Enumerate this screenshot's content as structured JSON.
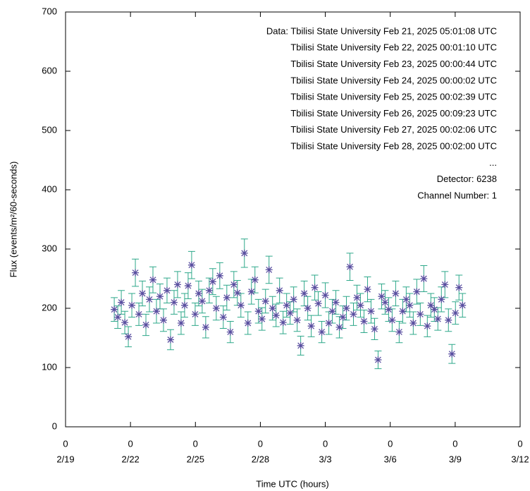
{
  "chart_data": {
    "type": "scatter",
    "xlabel": "Time UTC (hours)",
    "ylabel": "Flux (events/m²/60-seconds)",
    "annotations": [
      "Data: Tbilisi State University Feb 21, 2025 05:01:08 UTC",
      "Tbilisi State University Feb 22, 2025 00:01:10 UTC",
      "Tbilisi State University Feb 23, 2025 00:00:44 UTC",
      "Tbilisi State University Feb 24, 2025 00:00:02 UTC",
      "Tbilisi State University Feb 25, 2025 00:02:39 UTC",
      "Tbilisi State University Feb 26, 2025 00:09:23 UTC",
      "Tbilisi State University Feb 27, 2025 00:02:06 UTC",
      "Tbilisi State University Feb 28, 2025 00:02:00 UTC",
      "...",
      "Detector: 6238",
      "Channel Number: 1"
    ],
    "xlim": [
      0,
      504
    ],
    "xticks": [
      {
        "value": 0,
        "label": "0",
        "sublabel": "2/19"
      },
      {
        "value": 72,
        "label": "0",
        "sublabel": "2/22"
      },
      {
        "value": 144,
        "label": "0",
        "sublabel": "2/25"
      },
      {
        "value": 216,
        "label": "0",
        "sublabel": "2/28"
      },
      {
        "value": 288,
        "label": "0",
        "sublabel": "3/3"
      },
      {
        "value": 360,
        "label": "0",
        "sublabel": "3/6"
      },
      {
        "value": 432,
        "label": "0",
        "sublabel": "3/9"
      },
      {
        "value": 504,
        "label": "0",
        "sublabel": "3/12"
      }
    ],
    "ylim": [
      0,
      700
    ],
    "yticks": [
      0,
      100,
      200,
      300,
      400,
      500,
      600,
      700
    ],
    "marker_color": "#5a4fa0",
    "errorbar_color": "#2ea88a",
    "x": [
      54,
      57.9,
      61.8,
      65.7,
      69.6,
      73.5,
      77.4,
      81.3,
      85.2,
      89.1,
      93,
      96.9,
      100.8,
      104.7,
      108.6,
      112.5,
      116.4,
      120.3,
      124.2,
      128.1,
      132,
      135.9,
      139.8,
      143.7,
      147.6,
      151.5,
      155.4,
      159.3,
      163.2,
      167.1,
      171,
      174.9,
      178.8,
      182.7,
      186.6,
      190.5,
      194.4,
      198.3,
      202.2,
      206.1,
      210,
      213.9,
      217.8,
      221.7,
      225.6,
      229.5,
      233.4,
      237.3,
      241.2,
      245.1,
      249,
      252.9,
      256.8,
      260.7,
      264.6,
      268.5,
      272.4,
      276.3,
      280.2,
      284.1,
      288,
      291.9,
      295.8,
      299.7,
      303.6,
      307.5,
      311.4,
      315.3,
      319.2,
      323.1,
      327,
      330.9,
      334.8,
      338.7,
      342.6,
      346.5,
      350.4,
      354.3,
      358.2,
      362.1,
      366,
      369.9,
      373.8,
      377.7,
      381.6,
      385.5,
      389.4,
      393.3,
      397.2,
      401.1,
      405,
      408.9,
      412.8,
      416.7,
      420.6,
      424.5,
      428.4,
      432.3,
      436.2,
      440.1
    ],
    "values": [
      198,
      185,
      210,
      176,
      152,
      205,
      260,
      190,
      225,
      172,
      215,
      248,
      195,
      220,
      180,
      230,
      147,
      210,
      240,
      175,
      205,
      238,
      273,
      190,
      225,
      212,
      168,
      230,
      245,
      200,
      255,
      185,
      218,
      160,
      240,
      226,
      205,
      293,
      175,
      228,
      248,
      195,
      182,
      212,
      265,
      200,
      188,
      230,
      176,
      205,
      192,
      215,
      180,
      137,
      225,
      200,
      170,
      235,
      208,
      160,
      222,
      175,
      195,
      210,
      168,
      185,
      200,
      270,
      190,
      218,
      205,
      178,
      232,
      195,
      165,
      113,
      220,
      210,
      198,
      180,
      225,
      160,
      195,
      215,
      205,
      175,
      228,
      190,
      250,
      170,
      205,
      198,
      182,
      215,
      240,
      180,
      123,
      192,
      235,
      205
    ],
    "errors": [
      20,
      19,
      20,
      19,
      17,
      20,
      23,
      19,
      21,
      18,
      21,
      22,
      20,
      21,
      19,
      21,
      17,
      20,
      22,
      19,
      20,
      22,
      23,
      19,
      21,
      20,
      18,
      21,
      22,
      20,
      22,
      19,
      21,
      18,
      22,
      21,
      20,
      24,
      19,
      21,
      22,
      20,
      19,
      20,
      23,
      20,
      19,
      21,
      19,
      20,
      19,
      21,
      19,
      16,
      21,
      20,
      18,
      21,
      20,
      18,
      21,
      19,
      20,
      20,
      18,
      19,
      20,
      23,
      19,
      21,
      20,
      19,
      21,
      20,
      18,
      15,
      21,
      20,
      20,
      19,
      21,
      18,
      20,
      21,
      20,
      19,
      21,
      19,
      22,
      18,
      20,
      20,
      19,
      21,
      22,
      19,
      16,
      19,
      21,
      20
    ]
  }
}
